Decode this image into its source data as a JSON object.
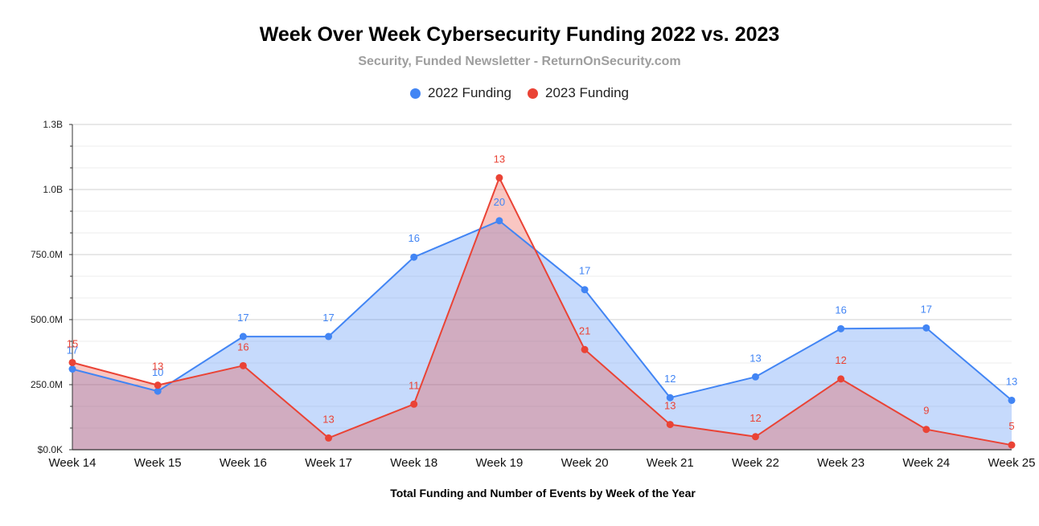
{
  "chart_data": {
    "type": "area",
    "title": "Week Over Week Cybersecurity Funding 2022 vs. 2023",
    "subtitle": "Security, Funded Newsletter - ReturnOnSecurity.com",
    "xlabel": "Total Funding and Number of Events by Week of the Year",
    "ylabel": "",
    "categories": [
      "Week 14",
      "Week 15",
      "Week 16",
      "Week 17",
      "Week 18",
      "Week 19",
      "Week 20",
      "Week 21",
      "Week 22",
      "Week 23",
      "Week 24",
      "Week 25"
    ],
    "ylim": [
      0,
      1250000000
    ],
    "y_ticks": [
      {
        "value": 0,
        "label": "$0.0K"
      },
      {
        "value": 250000000,
        "label": "250.0M"
      },
      {
        "value": 500000000,
        "label": "500.0M"
      },
      {
        "value": 750000000,
        "label": "750.0M"
      },
      {
        "value": 1000000000,
        "label": "1.0B"
      },
      {
        "value": 1250000000,
        "label": "1.3B"
      }
    ],
    "grid": true,
    "legend_position": "top",
    "series": [
      {
        "name": "2022 Funding",
        "color": "#4285f4",
        "fill": "#c3d6f5",
        "values": [
          310000000,
          225000000,
          435000000,
          435000000,
          740000000,
          880000000,
          615000000,
          200000000,
          280000000,
          465000000,
          468000000,
          190000000
        ],
        "labels": [
          "17",
          "10",
          "17",
          "17",
          "16",
          "20",
          "17",
          "12",
          "13",
          "16",
          "17",
          "13"
        ]
      },
      {
        "name": "2023 Funding",
        "color": "#ea4335",
        "fill": "#d4a7b8",
        "values": [
          335000000,
          248000000,
          323000000,
          45000000,
          175000000,
          1045000000,
          385000000,
          97000000,
          50000000,
          272000000,
          78000000,
          18000000
        ],
        "labels": [
          "15",
          "13",
          "16",
          "13",
          "11",
          "13",
          "21",
          "13",
          "12",
          "12",
          "9",
          "5"
        ]
      }
    ]
  }
}
